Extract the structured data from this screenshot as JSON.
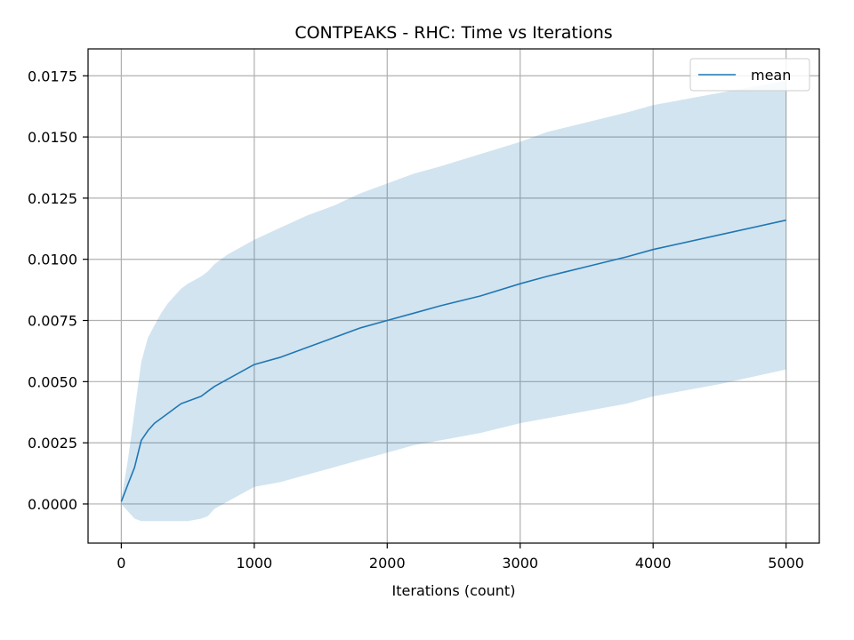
{
  "chart_data": {
    "type": "line",
    "title": "CONTPEAKS - RHC: Time vs Iterations",
    "xlabel": "Iterations (count)",
    "ylabel": "",
    "xlim": [
      -250,
      5250
    ],
    "ylim": [
      -0.0016,
      0.0186
    ],
    "xticks": [
      0,
      1000,
      2000,
      3000,
      4000,
      5000
    ],
    "xtick_labels": [
      "0",
      "1000",
      "2000",
      "3000",
      "4000",
      "5000"
    ],
    "yticks": [
      0.0,
      0.0025,
      0.005,
      0.0075,
      0.01,
      0.0125,
      0.015,
      0.0175
    ],
    "ytick_labels": [
      "0.0000",
      "0.0025",
      "0.0050",
      "0.0075",
      "0.0100",
      "0.0125",
      "0.0150",
      "0.0175"
    ],
    "grid": true,
    "legend": {
      "position": "top-right",
      "entries": [
        "mean"
      ]
    },
    "series": [
      {
        "name": "mean",
        "color": "#1f77b4",
        "band_color": "#1f77b4",
        "band_opacity": 0.2,
        "x": [
          0,
          50,
          100,
          150,
          200,
          250,
          300,
          350,
          400,
          450,
          500,
          600,
          650,
          700,
          800,
          900,
          1000,
          1200,
          1400,
          1600,
          1800,
          2000,
          2200,
          2400,
          2700,
          3000,
          3200,
          3500,
          3800,
          4000,
          4500,
          5000
        ],
        "mean": [
          0.0001,
          0.0008,
          0.0015,
          0.0026,
          0.003,
          0.0033,
          0.0035,
          0.0037,
          0.0039,
          0.0041,
          0.0042,
          0.0044,
          0.0046,
          0.0048,
          0.0051,
          0.0054,
          0.0057,
          0.006,
          0.0064,
          0.0068,
          0.0072,
          0.0075,
          0.0078,
          0.0081,
          0.0085,
          0.009,
          0.0093,
          0.0097,
          0.0101,
          0.0104,
          0.011,
          0.0116
        ],
        "upper": [
          0.0002,
          0.0018,
          0.0038,
          0.0058,
          0.0068,
          0.0073,
          0.0078,
          0.0082,
          0.0085,
          0.0088,
          0.009,
          0.0093,
          0.0095,
          0.0098,
          0.0102,
          0.0105,
          0.0108,
          0.0113,
          0.0118,
          0.0122,
          0.0127,
          0.0131,
          0.0135,
          0.0138,
          0.0143,
          0.0148,
          0.0152,
          0.0156,
          0.016,
          0.0163,
          0.0168,
          0.0173
        ],
        "lower": [
          0.0,
          -0.0003,
          -0.0006,
          -0.0007,
          -0.0007,
          -0.0007,
          -0.0007,
          -0.0007,
          -0.0007,
          -0.0007,
          -0.0007,
          -0.0006,
          -0.0005,
          -0.0002,
          0.0001,
          0.0004,
          0.0007,
          0.0009,
          0.0012,
          0.0015,
          0.0018,
          0.0021,
          0.0024,
          0.0026,
          0.0029,
          0.0033,
          0.0035,
          0.0038,
          0.0041,
          0.0044,
          0.0049,
          0.0055
        ]
      }
    ]
  }
}
